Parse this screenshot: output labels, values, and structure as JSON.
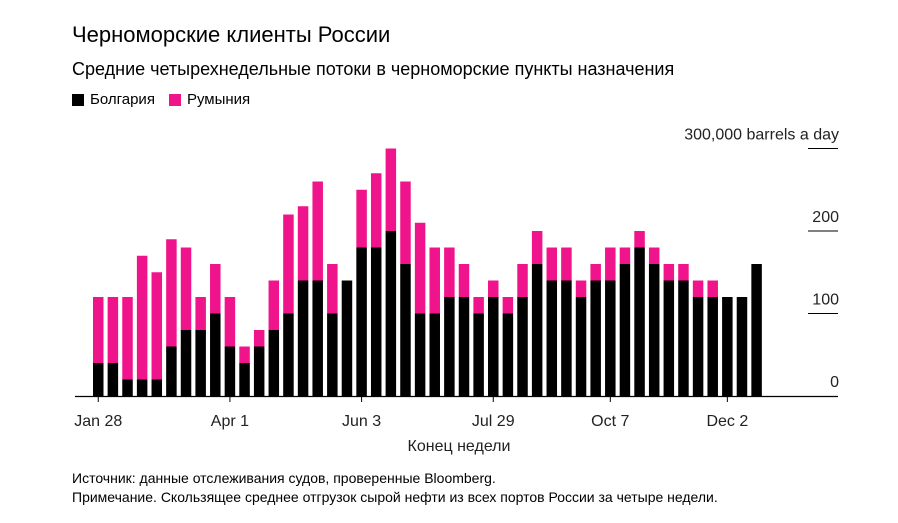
{
  "title": "Черноморские клиенты России",
  "subtitle": "Средние четырехнедельные потоки в черноморские пункты назначения",
  "source": "Источник: данные отслеживания судов, проверенные Bloomberg.",
  "note": "Примечание. Скользящее среднее отгрузок сырой нефти из всех портов России за четыре недели.",
  "chart_data": {
    "type": "bar",
    "stacked": true,
    "xlabel": "Конец недели",
    "ylabel": "300,000 barrels a day",
    "ylim": [
      0,
      300
    ],
    "yticks": [
      0,
      100,
      200,
      300
    ],
    "ytick_labels": [
      "0",
      "100",
      "200",
      "300,000 barrels a day"
    ],
    "y_axis_position": "right",
    "legend_position": "top-left",
    "colors": {
      "Болгария": "#000000",
      "Румыния": "#f0148c"
    },
    "x_ticks": [
      {
        "index": 0,
        "label": "Jan 28"
      },
      {
        "index": 9,
        "label": "Apr 1"
      },
      {
        "index": 18,
        "label": "Jun 3"
      },
      {
        "index": 27,
        "label": "Jul 29"
      },
      {
        "index": 35,
        "label": "Oct 7"
      },
      {
        "index": 43,
        "label": "Dec 2"
      }
    ],
    "series": [
      {
        "name": "Болгария",
        "values": [
          40,
          40,
          20,
          20,
          20,
          60,
          80,
          80,
          100,
          60,
          40,
          60,
          80,
          100,
          140,
          140,
          100,
          140,
          180,
          180,
          200,
          160,
          100,
          100,
          120,
          120,
          100,
          120,
          100,
          120,
          160,
          140,
          140,
          120,
          140,
          140,
          160,
          180,
          160,
          140,
          140,
          120,
          120,
          120,
          120,
          160
        ]
      },
      {
        "name": "Румыния",
        "values": [
          80,
          80,
          100,
          150,
          130,
          130,
          100,
          40,
          60,
          60,
          20,
          20,
          60,
          120,
          90,
          120,
          60,
          0,
          70,
          90,
          100,
          100,
          110,
          80,
          60,
          40,
          20,
          20,
          20,
          40,
          40,
          40,
          40,
          20,
          20,
          40,
          20,
          20,
          20,
          20,
          20,
          20,
          20,
          0,
          0,
          0
        ]
      }
    ]
  }
}
